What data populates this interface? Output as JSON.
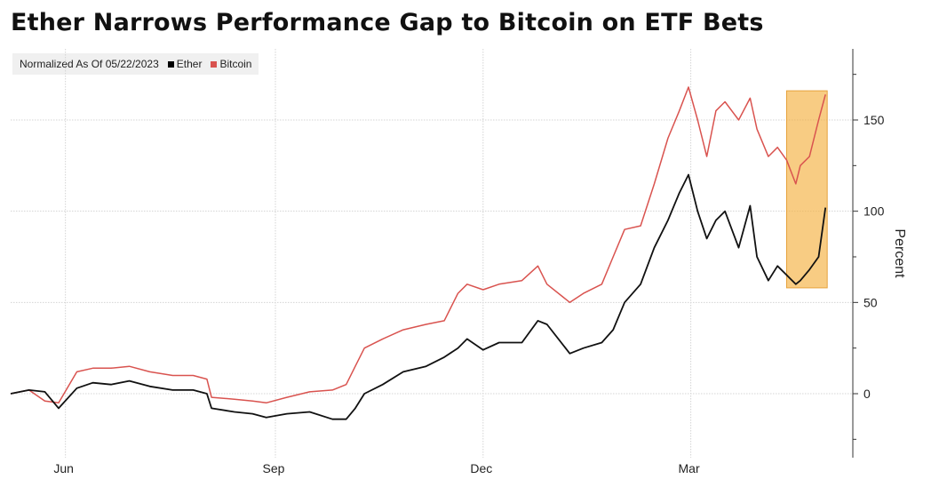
{
  "title": "Ether Narrows Performance Gap to Bitcoin on ETF Bets",
  "legend": {
    "note": "Normalized As Of 05/22/2023",
    "items": [
      {
        "label": "Ether",
        "color": "#000000"
      },
      {
        "label": "Bitcoin",
        "color": "#d9534f"
      }
    ]
  },
  "colors": {
    "ether": "#111111",
    "bitcoin": "#d9534f",
    "highlight": "#f5b041",
    "grid": "#d4d4d4"
  },
  "chart_data": {
    "type": "line",
    "title": "Ether Narrows Performance Gap to Bitcoin on ETF Bets",
    "ylabel": "Percent",
    "xlabel": "",
    "ylim": [
      -35,
      190
    ],
    "xlim": [
      "2023-05-22",
      "2024-05-25"
    ],
    "yticks": [
      0,
      50,
      100,
      150
    ],
    "xticks": [
      {
        "label": "Jun",
        "date": "2023-06-15"
      },
      {
        "label": "Sep",
        "date": "2023-09-15"
      },
      {
        "label": "Dec",
        "date": "2023-12-15"
      },
      {
        "label": "Mar",
        "date": "2024-03-15"
      }
    ],
    "highlight_range": {
      "x": [
        "2024-04-26",
        "2024-05-13"
      ],
      "y": [
        58,
        166
      ]
    },
    "grid": true,
    "legend_position": "top-left",
    "series": [
      {
        "name": "Bitcoin",
        "color": "#d9534f",
        "points": [
          [
            "2023-05-22",
            0
          ],
          [
            "2023-05-30",
            2
          ],
          [
            "2023-06-06",
            -4
          ],
          [
            "2023-06-12",
            -5
          ],
          [
            "2023-06-20",
            12
          ],
          [
            "2023-06-27",
            14
          ],
          [
            "2023-07-05",
            14
          ],
          [
            "2023-07-13",
            15
          ],
          [
            "2023-07-22",
            12
          ],
          [
            "2023-08-01",
            10
          ],
          [
            "2023-08-10",
            10
          ],
          [
            "2023-08-16",
            8
          ],
          [
            "2023-08-18",
            -2
          ],
          [
            "2023-08-28",
            -3
          ],
          [
            "2023-09-05",
            -4
          ],
          [
            "2023-09-11",
            -5
          ],
          [
            "2023-09-20",
            -2
          ],
          [
            "2023-09-30",
            1
          ],
          [
            "2023-10-10",
            2
          ],
          [
            "2023-10-16",
            5
          ],
          [
            "2023-10-20",
            15
          ],
          [
            "2023-10-24",
            25
          ],
          [
            "2023-11-01",
            30
          ],
          [
            "2023-11-10",
            35
          ],
          [
            "2023-11-20",
            38
          ],
          [
            "2023-11-28",
            40
          ],
          [
            "2023-12-04",
            55
          ],
          [
            "2023-12-08",
            60
          ],
          [
            "2023-12-15",
            57
          ],
          [
            "2023-12-22",
            60
          ],
          [
            "2024-01-01",
            62
          ],
          [
            "2024-01-08",
            70
          ],
          [
            "2024-01-12",
            60
          ],
          [
            "2024-01-22",
            50
          ],
          [
            "2024-01-28",
            55
          ],
          [
            "2024-02-05",
            60
          ],
          [
            "2024-02-10",
            75
          ],
          [
            "2024-02-15",
            90
          ],
          [
            "2024-02-22",
            92
          ],
          [
            "2024-02-28",
            115
          ],
          [
            "2024-03-05",
            140
          ],
          [
            "2024-03-10",
            155
          ],
          [
            "2024-03-14",
            168
          ],
          [
            "2024-03-18",
            150
          ],
          [
            "2024-03-22",
            130
          ],
          [
            "2024-03-26",
            155
          ],
          [
            "2024-03-30",
            160
          ],
          [
            "2024-04-05",
            150
          ],
          [
            "2024-04-10",
            162
          ],
          [
            "2024-04-13",
            145
          ],
          [
            "2024-04-18",
            130
          ],
          [
            "2024-04-22",
            135
          ],
          [
            "2024-04-26",
            128
          ],
          [
            "2024-04-30",
            115
          ],
          [
            "2024-05-02",
            125
          ],
          [
            "2024-05-06",
            130
          ],
          [
            "2024-05-10",
            150
          ],
          [
            "2024-05-13",
            164
          ]
        ]
      },
      {
        "name": "Ether",
        "color": "#000000",
        "points": [
          [
            "2023-05-22",
            0
          ],
          [
            "2023-05-30",
            2
          ],
          [
            "2023-06-06",
            1
          ],
          [
            "2023-06-12",
            -8
          ],
          [
            "2023-06-20",
            3
          ],
          [
            "2023-06-27",
            6
          ],
          [
            "2023-07-05",
            5
          ],
          [
            "2023-07-13",
            7
          ],
          [
            "2023-07-22",
            4
          ],
          [
            "2023-08-01",
            2
          ],
          [
            "2023-08-10",
            2
          ],
          [
            "2023-08-16",
            0
          ],
          [
            "2023-08-18",
            -8
          ],
          [
            "2023-08-28",
            -10
          ],
          [
            "2023-09-05",
            -11
          ],
          [
            "2023-09-11",
            -13
          ],
          [
            "2023-09-20",
            -11
          ],
          [
            "2023-09-30",
            -10
          ],
          [
            "2023-10-10",
            -14
          ],
          [
            "2023-10-16",
            -14
          ],
          [
            "2023-10-20",
            -8
          ],
          [
            "2023-10-24",
            0
          ],
          [
            "2023-11-01",
            5
          ],
          [
            "2023-11-10",
            12
          ],
          [
            "2023-11-20",
            15
          ],
          [
            "2023-11-28",
            20
          ],
          [
            "2023-12-04",
            25
          ],
          [
            "2023-12-08",
            30
          ],
          [
            "2023-12-15",
            24
          ],
          [
            "2023-12-22",
            28
          ],
          [
            "2024-01-01",
            28
          ],
          [
            "2024-01-08",
            40
          ],
          [
            "2024-01-12",
            38
          ],
          [
            "2024-01-22",
            22
          ],
          [
            "2024-01-28",
            25
          ],
          [
            "2024-02-05",
            28
          ],
          [
            "2024-02-10",
            35
          ],
          [
            "2024-02-15",
            50
          ],
          [
            "2024-02-22",
            60
          ],
          [
            "2024-02-28",
            80
          ],
          [
            "2024-03-05",
            95
          ],
          [
            "2024-03-10",
            110
          ],
          [
            "2024-03-14",
            120
          ],
          [
            "2024-03-18",
            100
          ],
          [
            "2024-03-22",
            85
          ],
          [
            "2024-03-26",
            95
          ],
          [
            "2024-03-30",
            100
          ],
          [
            "2024-04-05",
            80
          ],
          [
            "2024-04-10",
            103
          ],
          [
            "2024-04-13",
            75
          ],
          [
            "2024-04-18",
            62
          ],
          [
            "2024-04-22",
            70
          ],
          [
            "2024-04-26",
            65
          ],
          [
            "2024-04-30",
            60
          ],
          [
            "2024-05-02",
            62
          ],
          [
            "2024-05-06",
            68
          ],
          [
            "2024-05-10",
            75
          ],
          [
            "2024-05-13",
            102
          ]
        ]
      }
    ]
  }
}
